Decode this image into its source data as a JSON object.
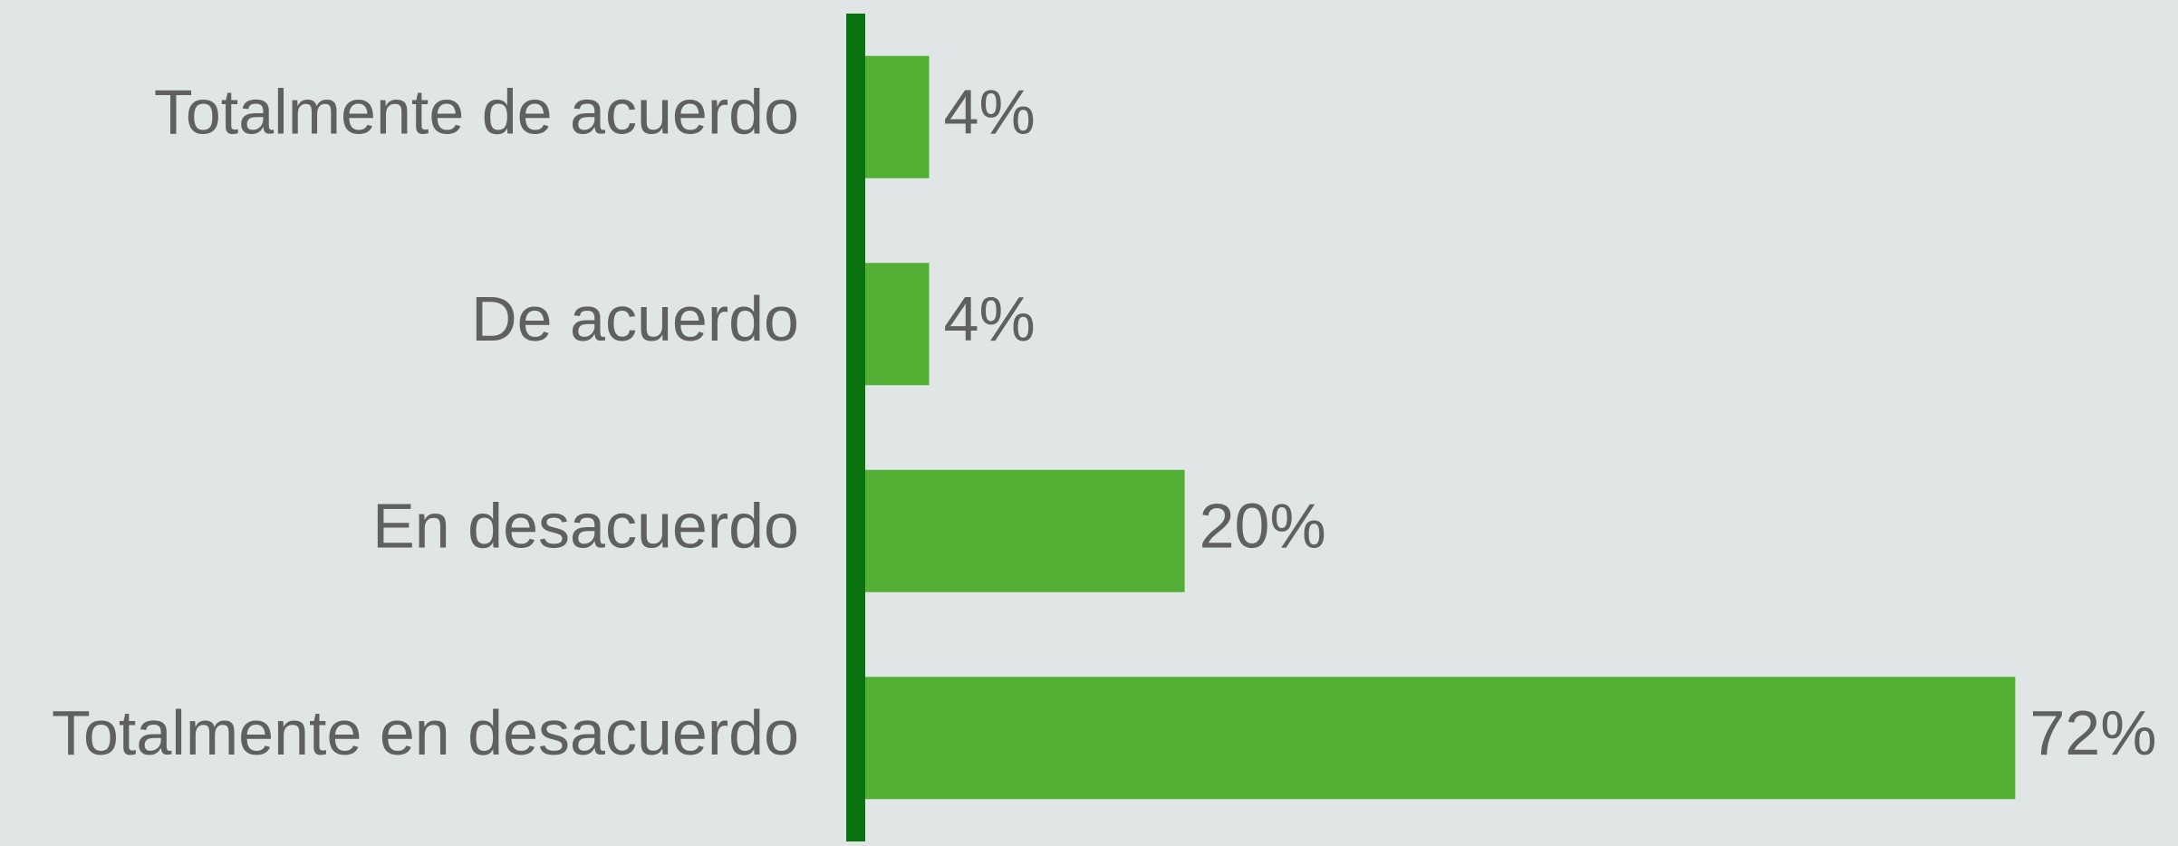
{
  "chart_data": {
    "type": "bar",
    "orientation": "horizontal",
    "categories": [
      "Totalmente de acuerdo",
      "De acuerdo",
      "En desacuerdo",
      "Totalmente en desacuerdo"
    ],
    "values": [
      4,
      4,
      20,
      72
    ],
    "value_labels": [
      "4%",
      "4%",
      "20%",
      "72%"
    ],
    "color": "#54b035",
    "axis_color": "#0a730f"
  }
}
